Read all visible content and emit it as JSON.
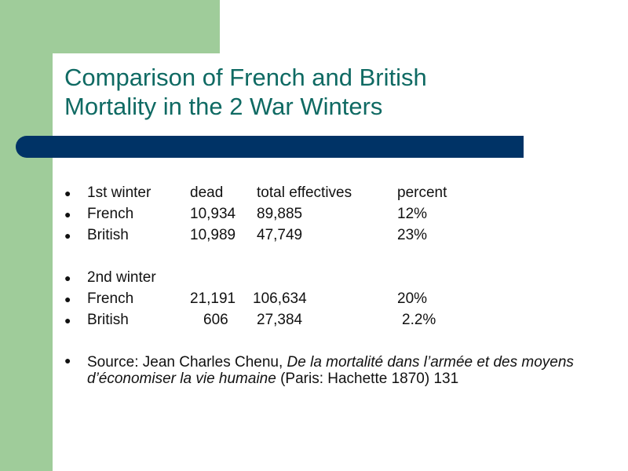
{
  "slide": {
    "title_line1": "Comparison of French and British",
    "title_line2": "Mortality in the 2 War Winters",
    "bullet_symbol": "●",
    "rows": [
      {
        "cols": [
          "1st winter",
          "dead",
          "total effectives",
          "percent"
        ]
      },
      {
        "cols": [
          "French",
          "10,934",
          "89,885",
          "12%"
        ]
      },
      {
        "cols": [
          "British",
          "10,989",
          "47,749",
          "23%"
        ]
      },
      {
        "cols": [
          "2nd winter",
          "",
          "",
          ""
        ]
      },
      {
        "cols": [
          "French",
          "21,191",
          "106,634",
          "20%"
        ]
      },
      {
        "cols": [
          "British",
          "606",
          "27,384",
          "2.2%"
        ]
      }
    ],
    "source": {
      "prefix": "Source: Jean Charles Chenu, ",
      "italic": "De la mortalité dans l’armée et des moyens d’économiser la vie humaine",
      "suffix": " (Paris: Hachette 1870) 131"
    }
  },
  "colors": {
    "green": "#9fcc9a",
    "title_text": "#0f6a63",
    "bar": "#003366"
  }
}
